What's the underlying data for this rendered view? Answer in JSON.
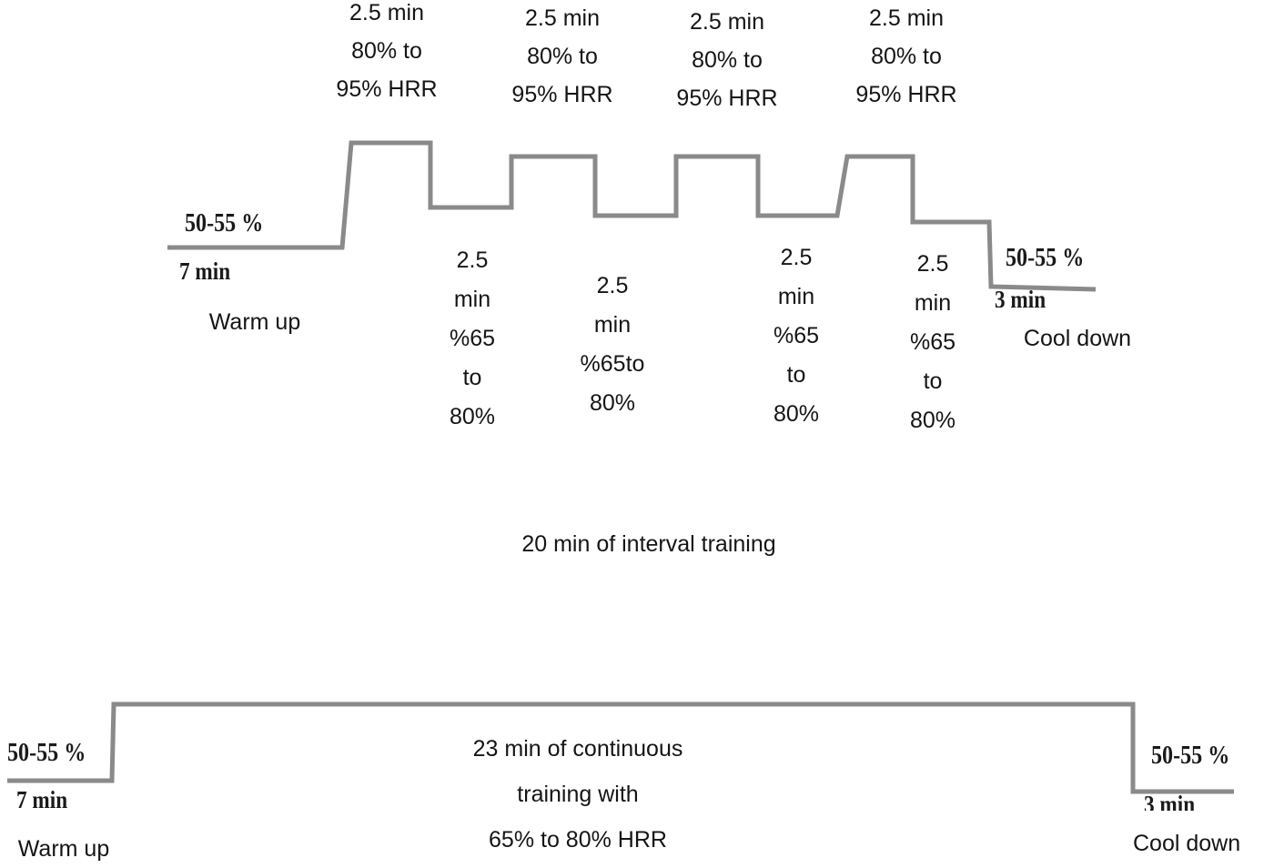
{
  "interval": {
    "warmup": {
      "intensity": "50-55 %",
      "duration": "7 min",
      "label": "Warm up"
    },
    "high_blocks": [
      "2.5 min\n80% to\n95% HRR",
      "2.5 min\n80% to\n95% HRR",
      "2.5 min\n80% to\n95% HRR",
      "2.5 min\n80% to\n95% HRR"
    ],
    "low_blocks": [
      "2.5\nmin\n%65\nto\n80%",
      "2.5\nmin\n%65to\n80%",
      "2.5\nmin\n%65\nto\n80%",
      "2.5\nmin\n%65\nto\n80%"
    ],
    "cooldown": {
      "intensity": "50-55 %",
      "duration": "3 min",
      "label": "Cool down"
    },
    "caption": "20 min of interval training"
  },
  "continuous": {
    "warmup": {
      "intensity": "50-55 %",
      "duration": "7 min",
      "label": "Warm up"
    },
    "description": "23 min of continuous\ntraining with\n65% to 80% HRR",
    "cooldown": {
      "intensity": "50-55 %",
      "duration": "3 min",
      "label": "Cool down"
    }
  },
  "colors": {
    "line": "#8a8a8a",
    "text": "#151515"
  }
}
